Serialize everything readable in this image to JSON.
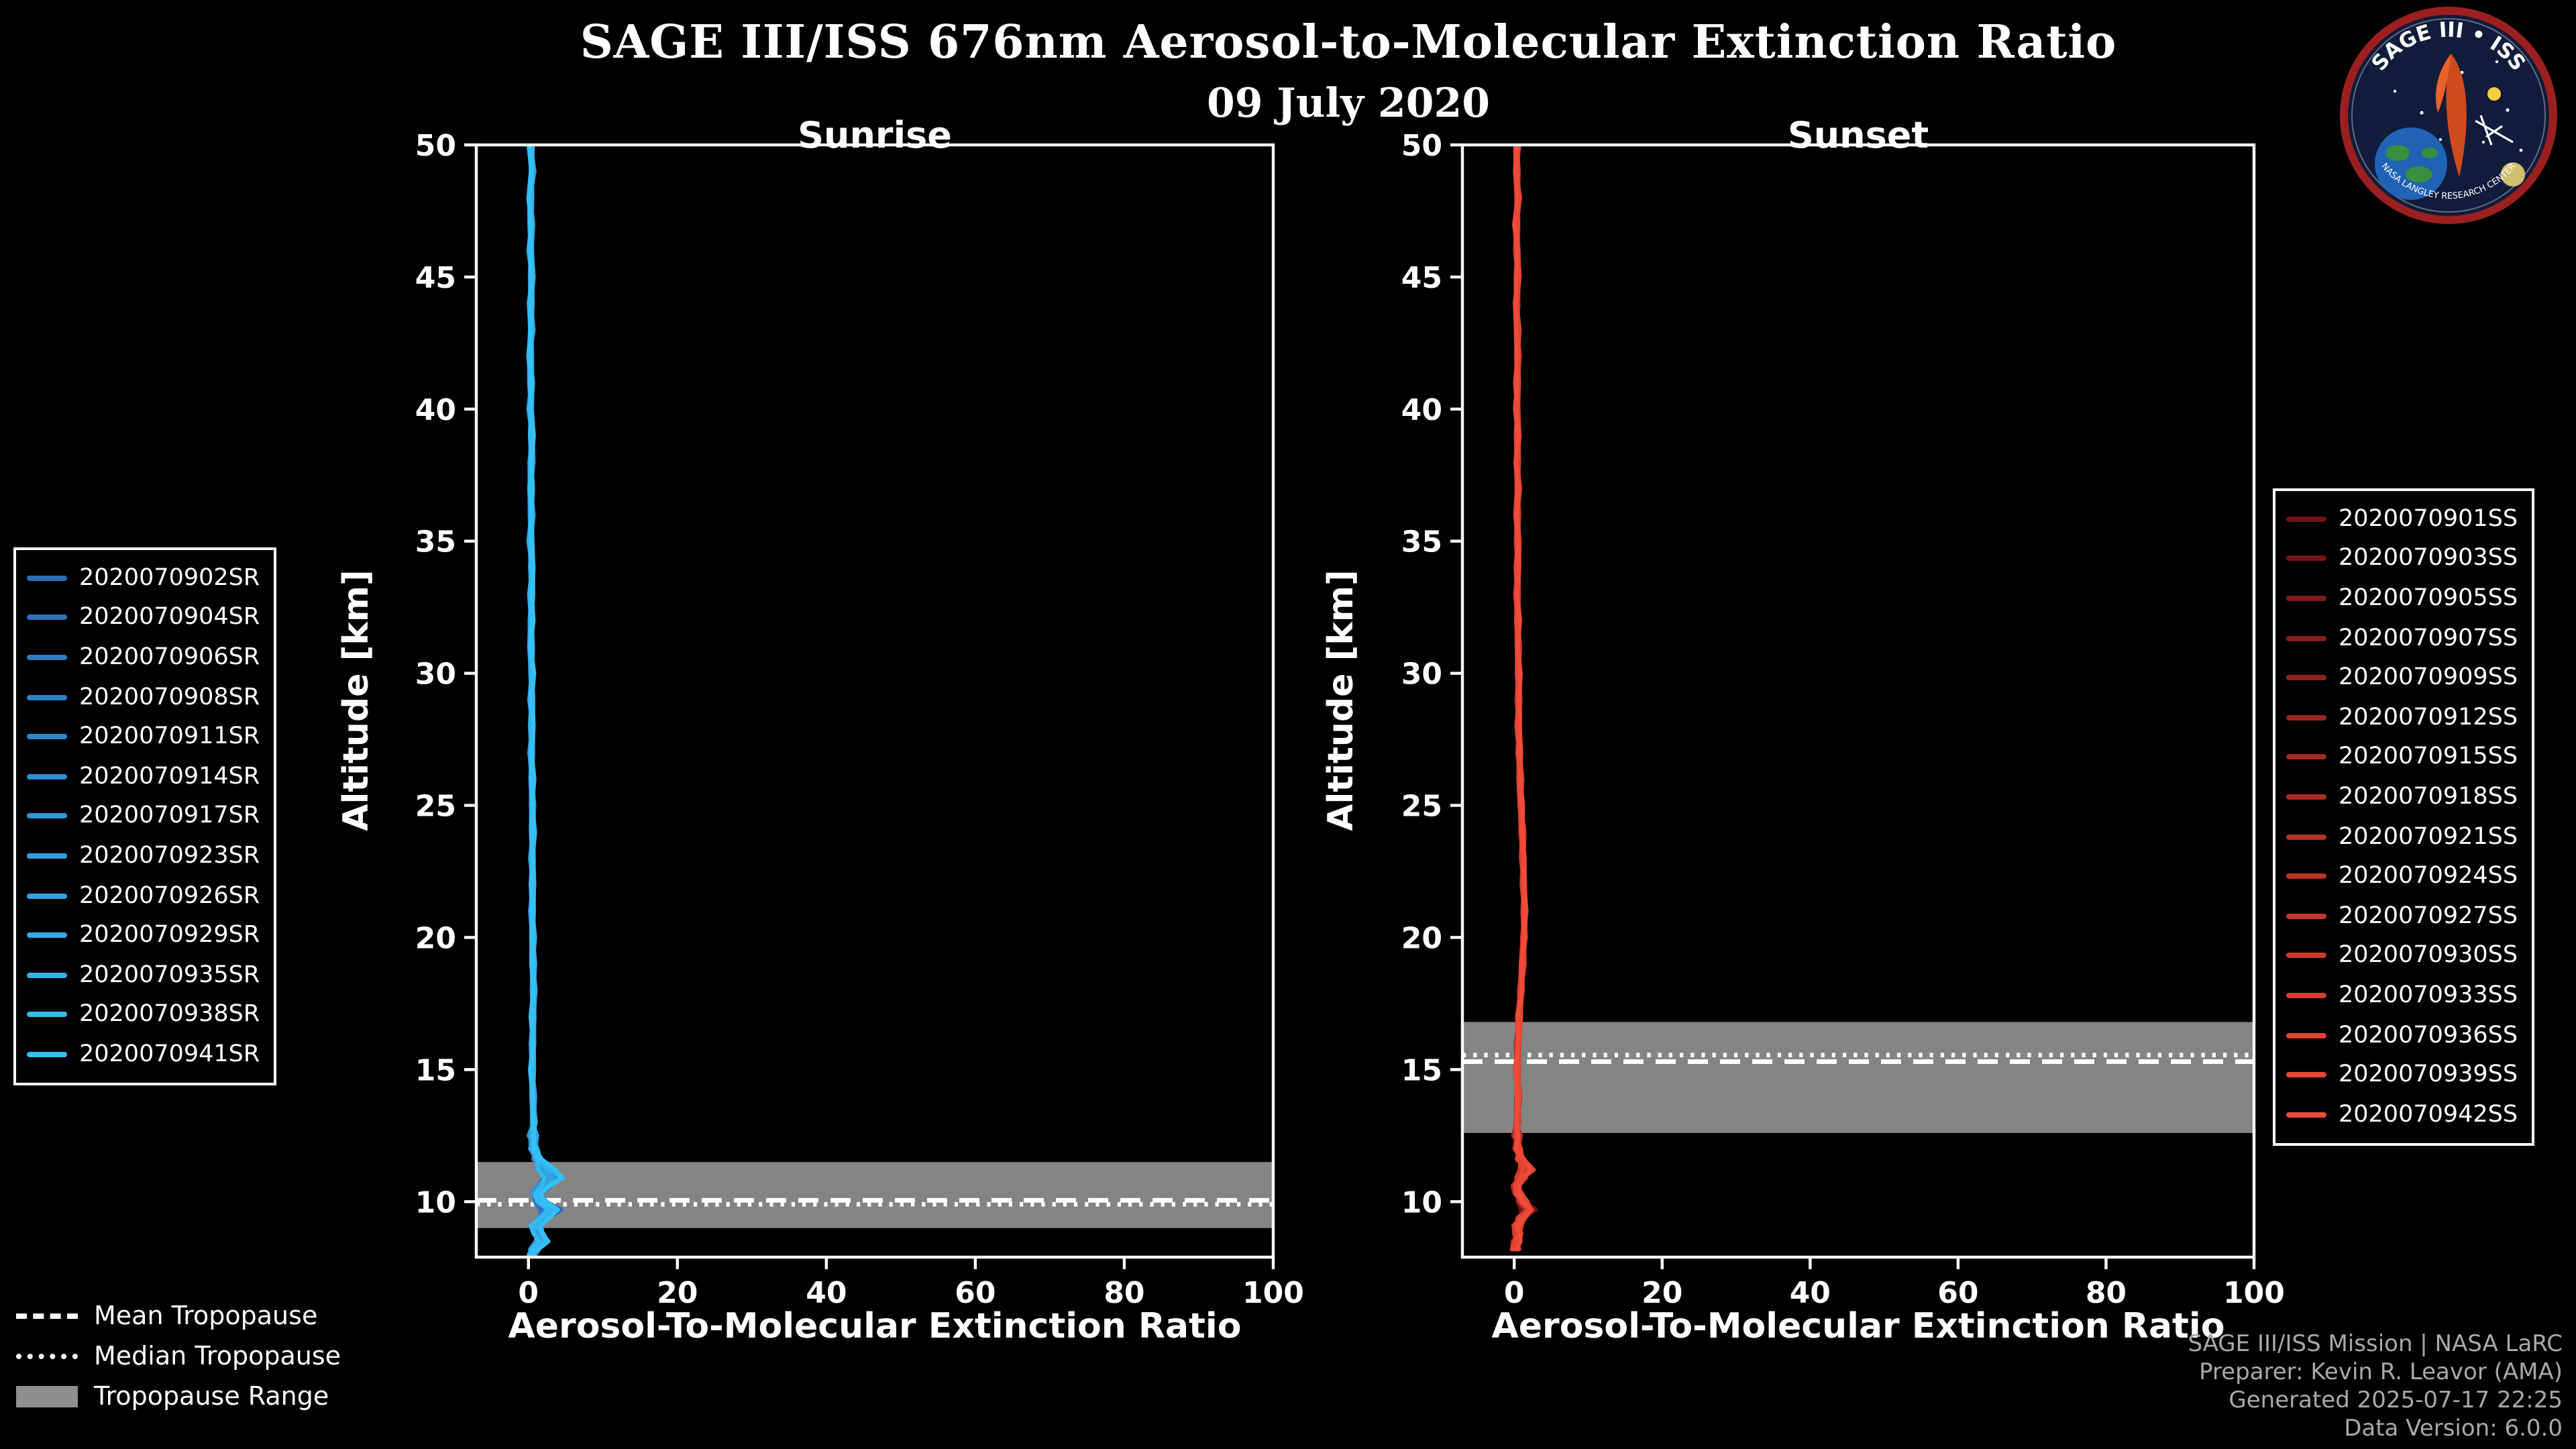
{
  "header": {
    "title": "SAGE III/ISS 676nm Aerosol-to-Molecular Extinction Ratio",
    "date": "09 July 2020"
  },
  "logo": {
    "arc_text": "SAGE III • ISS",
    "bottom_text": "NASA LANGLEY RESEARCH CENTER"
  },
  "tropopause_legend": {
    "mean_label": "Mean Tropopause",
    "median_label": "Median Tropopause",
    "range_label": "Tropopause Range"
  },
  "footer": {
    "line1": "SAGE III/ISS Mission | NASA LaRC",
    "line2": "Preparer: Kevin R. Leavor (AMA)",
    "line3": "Generated 2025-07-17 22:25",
    "line4": "Data Version: 6.0.0"
  },
  "colors": {
    "background": "#000000",
    "axis": "#ffffff",
    "tropopause_band": "#8f8f8f",
    "sunrise_start": "#2a6db8",
    "sunrise_end": "#35c0f5",
    "sunset_start": "#6f1212",
    "sunset_end": "#f04a38",
    "footer_text": "#a9a9a9"
  },
  "chart_data": [
    {
      "type": "line",
      "panel": "sunrise",
      "title": "Sunrise",
      "xlabel": "Aerosol-To-Molecular Extinction Ratio",
      "ylabel": "Altitude [km]",
      "xlim": [
        -7,
        100
      ],
      "ylim": [
        7.9,
        50
      ],
      "xticks": [
        0,
        20,
        40,
        60,
        80,
        100
      ],
      "yticks": [
        10,
        15,
        20,
        25,
        30,
        35,
        40,
        45,
        50
      ],
      "grid": false,
      "legend_position": "outside-left",
      "color_start": "#2a6db8",
      "color_end": "#35c0f5",
      "tropopause": {
        "mean_km": 10.05,
        "median_km": 9.9,
        "range_km": [
          9.0,
          11.5
        ]
      },
      "series": [
        "2020070902SR",
        "2020070904SR",
        "2020070906SR",
        "2020070908SR",
        "2020070911SR",
        "2020070914SR",
        "2020070917SR",
        "2020070923SR",
        "2020070926SR",
        "2020070929SR",
        "2020070935SR",
        "2020070938SR",
        "2020070941SR"
      ],
      "profile_alt_km": [
        50,
        49,
        48,
        47,
        46,
        45,
        44,
        43,
        42,
        41,
        40,
        39,
        38,
        37,
        36,
        35,
        34,
        33,
        32,
        31,
        30,
        29,
        28,
        27,
        26,
        25,
        24,
        23,
        22,
        21,
        20,
        19,
        18,
        17,
        16,
        15,
        14,
        13,
        12.5,
        12,
        11.6,
        11.2,
        10.9,
        10.6,
        10.3,
        10.0,
        9.7,
        9.4,
        9.1,
        8.8,
        8.5,
        8.2,
        8.0
      ],
      "profile_ratio": [
        0.3,
        0.5,
        0.2,
        0.4,
        0.3,
        0.5,
        0.3,
        0.4,
        0.2,
        0.4,
        0.3,
        0.5,
        0.4,
        0.3,
        0.4,
        0.3,
        0.5,
        0.4,
        0.4,
        0.3,
        0.5,
        0.4,
        0.5,
        0.4,
        0.5,
        0.5,
        0.6,
        0.5,
        0.6,
        0.5,
        0.6,
        0.6,
        0.7,
        0.6,
        0.6,
        0.5,
        0.6,
        0.7,
        0.8,
        1.0,
        1.6,
        3.2,
        4.6,
        3.0,
        1.6,
        2.4,
        4.2,
        2.6,
        1.2,
        1.8,
        2.6,
        1.2,
        0.6
      ]
    },
    {
      "type": "line",
      "panel": "sunset",
      "title": "Sunset",
      "xlabel": "Aerosol-To-Molecular Extinction Ratio",
      "ylabel": "Altitude [km]",
      "xlim": [
        -7,
        100
      ],
      "ylim": [
        7.9,
        50
      ],
      "xticks": [
        0,
        20,
        40,
        60,
        80,
        100
      ],
      "yticks": [
        10,
        15,
        20,
        25,
        30,
        35,
        40,
        45,
        50
      ],
      "grid": false,
      "legend_position": "outside-right",
      "color_start": "#6f1212",
      "color_end": "#f04a38",
      "tropopause": {
        "mean_km": 15.3,
        "median_km": 15.55,
        "range_km": [
          12.6,
          16.8
        ]
      },
      "series": [
        "2020070901SS",
        "2020070903SS",
        "2020070905SS",
        "2020070907SS",
        "2020070909SS",
        "2020070912SS",
        "2020070915SS",
        "2020070918SS",
        "2020070921SS",
        "2020070924SS",
        "2020070927SS",
        "2020070930SS",
        "2020070933SS",
        "2020070936SS",
        "2020070939SS",
        "2020070942SS"
      ],
      "profile_alt_km": [
        50,
        49,
        48,
        47,
        46,
        45,
        44,
        43,
        42,
        41,
        40,
        39,
        38,
        37,
        36,
        35,
        34,
        33,
        32,
        31,
        30,
        29,
        28,
        27,
        26,
        25,
        24,
        23,
        22,
        21,
        20,
        19,
        18,
        17,
        16,
        15,
        14,
        13,
        12.5,
        12,
        11.6,
        11.2,
        10.9,
        10.6,
        10.3,
        10.0,
        9.7,
        9.4,
        9.1,
        8.8,
        8.5,
        8.2
      ],
      "profile_ratio": [
        0.4,
        0.3,
        0.5,
        0.3,
        0.4,
        0.5,
        0.3,
        0.4,
        0.5,
        0.4,
        0.4,
        0.5,
        0.4,
        0.5,
        0.4,
        0.5,
        0.5,
        0.4,
        0.5,
        0.5,
        0.6,
        0.6,
        0.6,
        0.7,
        0.8,
        0.9,
        1.1,
        1.2,
        1.3,
        1.4,
        1.3,
        1.1,
        0.9,
        0.7,
        0.5,
        0.4,
        0.5,
        0.4,
        0.5,
        0.7,
        1.1,
        2.2,
        1.2,
        0.4,
        0.8,
        1.6,
        2.6,
        1.2,
        0.5,
        0.7,
        0.4,
        0.3
      ]
    }
  ]
}
